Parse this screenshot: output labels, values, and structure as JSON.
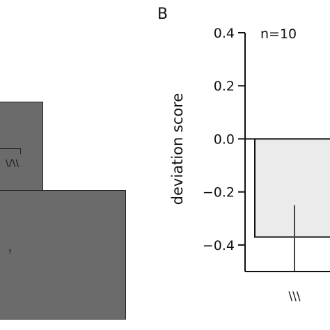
{
  "panel_a": {
    "top_box_label": "\\/\\\\",
    "bottom_box_label": "?",
    "box_color": "#6b6b6b"
  },
  "panel_b": {
    "panel_label": "B",
    "annotation": "n=10"
  },
  "chart_data": {
    "type": "bar",
    "categories": [
      "\\\\\\"
    ],
    "series": [
      {
        "values": [
          -0.37
        ],
        "error_low": [
          -0.5
        ],
        "error_high": [
          -0.25
        ],
        "color": "#ebebeb"
      }
    ],
    "title": "",
    "xlabel": "",
    "ylabel": "deviation score",
    "ylim": [
      -0.5,
      0.4
    ],
    "yticks": [
      0.4,
      0.2,
      0.0,
      -0.2,
      -0.4
    ],
    "ytick_labels": [
      "0.4",
      "0.2",
      "0.0",
      "−0.2",
      "−0.4"
    ],
    "grid": false,
    "zero_line": true
  }
}
